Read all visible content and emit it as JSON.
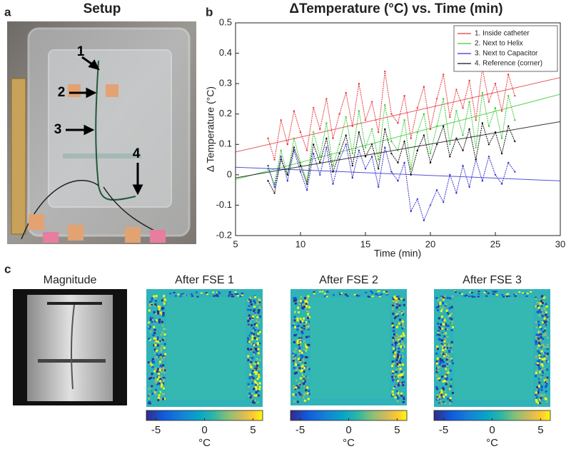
{
  "panels": {
    "a": "a",
    "b": "b",
    "c": "c"
  },
  "setup": {
    "title": "Setup",
    "annotations": [
      "1",
      "2",
      "3",
      "4"
    ]
  },
  "chart_data": {
    "type": "line",
    "title": "ΔTemperature (°C) vs. Time (min)",
    "x_label": "Time (min)",
    "y_label": "Δ Temperature (°C)",
    "x": [
      7.5,
      8,
      8.5,
      9,
      9.5,
      10,
      10.5,
      11,
      11.5,
      12,
      12.5,
      13,
      13.5,
      14,
      14.5,
      15,
      15.5,
      16,
      16.5,
      17,
      17.5,
      18,
      18.5,
      19,
      19.5,
      20,
      20.5,
      21,
      21.5,
      22,
      22.5,
      23,
      23.5,
      24,
      24.5,
      25,
      25.5,
      26,
      26.5
    ],
    "series": [
      {
        "name": "1. Inside catheter",
        "color": "#e8393c",
        "values": [
          0.12,
          0.05,
          0.18,
          0.1,
          0.21,
          0.14,
          0.08,
          0.22,
          0.15,
          0.25,
          0.12,
          0.2,
          0.27,
          0.16,
          0.3,
          0.18,
          0.24,
          0.14,
          0.34,
          0.2,
          0.17,
          0.26,
          0.12,
          0.22,
          0.29,
          0.15,
          0.25,
          0.33,
          0.19,
          0.28,
          0.22,
          0.31,
          0.18,
          0.35,
          0.24,
          0.3,
          0.21,
          0.33,
          0.26
        ],
        "fit": [
          0.075,
          0.32
        ]
      },
      {
        "name": "2. Next to Helix",
        "color": "#3fc93a",
        "values": [
          0.02,
          -0.03,
          0.08,
          0.0,
          0.12,
          0.04,
          -0.02,
          0.14,
          0.06,
          0.17,
          0.03,
          0.1,
          0.19,
          0.07,
          0.21,
          0.09,
          0.15,
          0.05,
          0.23,
          0.11,
          0.08,
          0.18,
          0.02,
          0.14,
          0.2,
          0.07,
          0.16,
          0.25,
          0.1,
          0.21,
          0.13,
          0.24,
          0.09,
          0.27,
          0.16,
          0.22,
          0.12,
          0.26,
          0.18
        ],
        "fit": [
          -0.015,
          0.265
        ]
      },
      {
        "name": "3. Next to Capacitor",
        "color": "#3434d0",
        "values": [
          0.03,
          -0.04,
          0.06,
          -0.02,
          0.08,
          0.01,
          -0.05,
          0.07,
          0.0,
          0.09,
          -0.03,
          0.05,
          0.1,
          -0.01,
          0.08,
          0.02,
          0.06,
          -0.04,
          0.09,
          0.01,
          -0.02,
          0.04,
          -0.12,
          -0.08,
          -0.15,
          -0.1,
          -0.05,
          -0.09,
          0.0,
          -0.06,
          0.03,
          -0.04,
          0.05,
          -0.02,
          0.06,
          0.0,
          -0.03,
          0.04,
          0.01
        ],
        "fit": [
          0.025,
          -0.02
        ]
      },
      {
        "name": "4. Reference (corner)",
        "color": "#111111",
        "values": [
          -0.02,
          -0.06,
          0.05,
          0.0,
          0.09,
          0.03,
          -0.03,
          0.1,
          0.04,
          0.12,
          0.01,
          0.07,
          0.13,
          0.03,
          0.14,
          0.06,
          0.1,
          0.02,
          0.15,
          0.07,
          0.04,
          0.11,
          0.0,
          0.08,
          0.13,
          0.04,
          0.1,
          0.16,
          0.06,
          0.12,
          0.08,
          0.15,
          0.05,
          0.17,
          0.1,
          0.14,
          0.07,
          0.16,
          0.11
        ],
        "fit": [
          -0.01,
          0.175
        ]
      }
    ],
    "xlim": [
      5,
      30
    ],
    "xticks": [
      5,
      10,
      15,
      20,
      25,
      30
    ],
    "ylim": [
      -0.2,
      0.5
    ],
    "yticks": [
      -0.2,
      -0.1,
      0,
      0.1,
      0.2,
      0.3,
      0.4,
      0.5
    ],
    "legend": "upper right"
  },
  "maps": {
    "titles": [
      "Magnitude",
      "After FSE 1",
      "After FSE 2",
      "After FSE 3"
    ],
    "colorbar": {
      "lim": [
        -6,
        6
      ],
      "ticks": [
        -5,
        0,
        5
      ],
      "label": "°C"
    }
  }
}
